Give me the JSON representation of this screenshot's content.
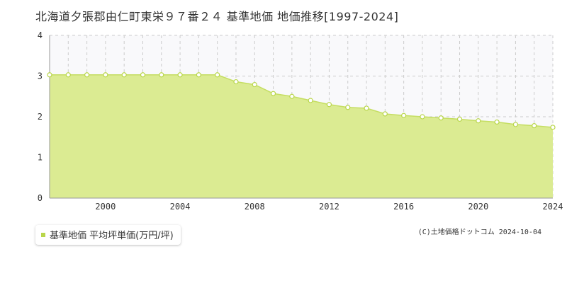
{
  "page": {
    "title": "北海道夕張郡由仁町東栄９７番２４ 基準地価 地価推移[1997-2024]",
    "credit": "(C)土地価格ドットコム 2024-10-04"
  },
  "colors": {
    "area_fill": "#dbeb92",
    "line": "#c5de62",
    "marker_fill": "#ffffff",
    "marker_stroke": "#b9d64a",
    "legend_marker": "#b9d64a",
    "plot_bg": "#f9f9fb",
    "grid": "#cccccc",
    "axis": "#999999"
  },
  "chart_data": {
    "type": "area",
    "title": "北海道夕張郡由仁町東栄９７番２４ 基準地価 地価推移[1997-2024]",
    "xlabel": "",
    "ylabel": "",
    "xlim": [
      1997,
      2024
    ],
    "ylim": [
      0,
      4
    ],
    "x_ticks": [
      2000,
      2004,
      2008,
      2012,
      2016,
      2020,
      2024
    ],
    "y_ticks": [
      0,
      1,
      2,
      3,
      4
    ],
    "grid": true,
    "legend_position": "bottom-left",
    "series": [
      {
        "name": "基準地価 平均坪単価(万円/坪)",
        "x": [
          1997,
          1998,
          1999,
          2000,
          2001,
          2002,
          2003,
          2004,
          2005,
          2006,
          2007,
          2008,
          2009,
          2010,
          2011,
          2012,
          2013,
          2014,
          2015,
          2016,
          2017,
          2018,
          2019,
          2020,
          2021,
          2022,
          2023,
          2024
        ],
        "values": [
          3.03,
          3.03,
          3.03,
          3.03,
          3.03,
          3.03,
          3.03,
          3.03,
          3.03,
          3.03,
          2.86,
          2.79,
          2.57,
          2.5,
          2.4,
          2.3,
          2.23,
          2.21,
          2.07,
          2.03,
          2.0,
          1.97,
          1.94,
          1.9,
          1.87,
          1.81,
          1.78,
          1.74
        ]
      }
    ]
  }
}
